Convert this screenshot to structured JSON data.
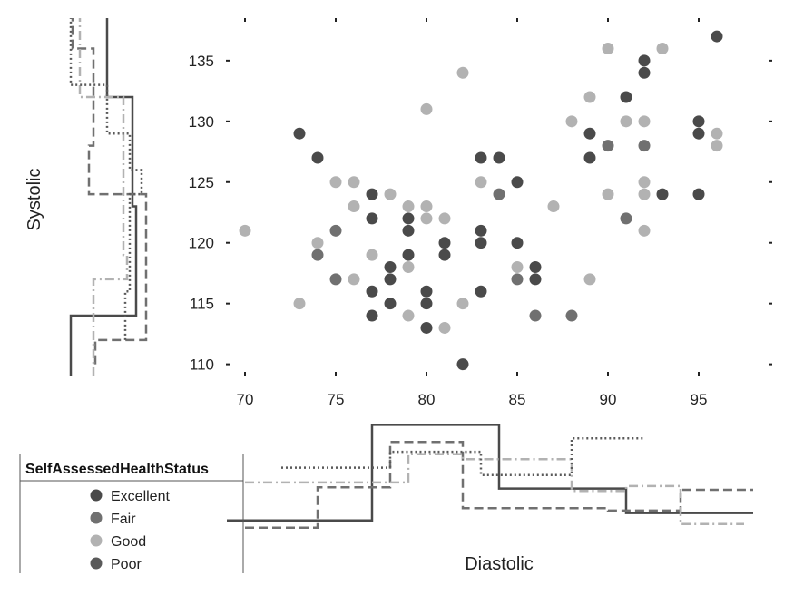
{
  "chart_data": {
    "type": "scatter",
    "title": "",
    "xlabel": "Diastolic",
    "ylabel": "Systolic",
    "xlim": [
      69,
      99
    ],
    "ylim": [
      109,
      138.5
    ],
    "x_ticks": [
      70,
      75,
      80,
      85,
      90,
      95
    ],
    "y_ticks": [
      110,
      115,
      120,
      125,
      130,
      135
    ],
    "grid": false,
    "legend": {
      "title": "SelfAssessedHealthStatus",
      "placement": "bottom-left"
    },
    "series": [
      {
        "name": "Excellent",
        "color": "#4a4a4a",
        "line_style": "solid",
        "points": [
          [
            73,
            129
          ],
          [
            74,
            127
          ],
          [
            77,
            124
          ],
          [
            77,
            122
          ],
          [
            77,
            116
          ],
          [
            77,
            114
          ],
          [
            78,
            118
          ],
          [
            78,
            117
          ],
          [
            78,
            115
          ],
          [
            79,
            122
          ],
          [
            79,
            121
          ],
          [
            79,
            119
          ],
          [
            80,
            116
          ],
          [
            80,
            115
          ],
          [
            80,
            113
          ],
          [
            81,
            120
          ],
          [
            81,
            119
          ],
          [
            82,
            110
          ],
          [
            83,
            127
          ],
          [
            83,
            121
          ],
          [
            83,
            120
          ],
          [
            83,
            116
          ],
          [
            84,
            127
          ],
          [
            85,
            125
          ],
          [
            85,
            120
          ],
          [
            86,
            118
          ],
          [
            86,
            117
          ],
          [
            89,
            129
          ],
          [
            89,
            127
          ],
          [
            91,
            132
          ],
          [
            92,
            135
          ],
          [
            92,
            134
          ],
          [
            93,
            124
          ],
          [
            95,
            130
          ],
          [
            95,
            129
          ],
          [
            95,
            124
          ],
          [
            96,
            137
          ]
        ]
      },
      {
        "name": "Fair",
        "color": "#707070",
        "line_style": "dash",
        "points": [
          [
            74,
            119
          ],
          [
            75,
            121
          ],
          [
            75,
            117
          ],
          [
            84,
            124
          ],
          [
            85,
            117
          ],
          [
            86,
            114
          ],
          [
            88,
            114
          ],
          [
            90,
            128
          ],
          [
            91,
            122
          ],
          [
            92,
            128
          ]
        ]
      },
      {
        "name": "Good",
        "color": "#b2b2b2",
        "line_style": "dashdot",
        "points": [
          [
            70,
            121
          ],
          [
            73,
            115
          ],
          [
            74,
            120
          ],
          [
            75,
            125
          ],
          [
            76,
            125
          ],
          [
            76,
            123
          ],
          [
            76,
            117
          ],
          [
            77,
            119
          ],
          [
            78,
            124
          ],
          [
            79,
            123
          ],
          [
            79,
            118
          ],
          [
            79,
            114
          ],
          [
            80,
            131
          ],
          [
            80,
            123
          ],
          [
            80,
            122
          ],
          [
            81,
            122
          ],
          [
            81,
            113
          ],
          [
            82,
            134
          ],
          [
            82,
            115
          ],
          [
            83,
            125
          ],
          [
            85,
            118
          ],
          [
            87,
            123
          ],
          [
            88,
            130
          ],
          [
            89,
            132
          ],
          [
            89,
            117
          ],
          [
            90,
            136
          ],
          [
            90,
            124
          ],
          [
            91,
            130
          ],
          [
            92,
            130
          ],
          [
            92,
            125
          ],
          [
            92,
            124
          ],
          [
            92,
            121
          ],
          [
            93,
            136
          ],
          [
            96,
            129
          ],
          [
            96,
            128
          ]
        ]
      },
      {
        "name": "Poor",
        "color": "#5a5a5a",
        "line_style": "dot",
        "points": []
      }
    ],
    "marginal_x": {
      "bins": [
        69,
        73,
        77,
        84,
        91,
        98
      ],
      "series": [
        {
          "name": "Excellent",
          "bins": [
            69,
            73,
            77,
            84,
            91,
            98
          ],
          "density": [
            0.18,
            0.18,
            0.96,
            0.44,
            0.24
          ]
        },
        {
          "name": "Fair",
          "bins": [
            70,
            74,
            78,
            82,
            86,
            90,
            94,
            98
          ],
          "density": [
            0.12,
            0.45,
            0.82,
            0.28,
            0.28,
            0.26,
            0.43
          ]
        },
        {
          "name": "Good",
          "bins": [
            70,
            73,
            76,
            79,
            82,
            85,
            88,
            91,
            94,
            97.5
          ],
          "density": [
            0.49,
            0.49,
            0.49,
            0.72,
            0.68,
            0.68,
            0.42,
            0.46,
            0.15
          ]
        },
        {
          "name": "Poor",
          "bins": [
            72,
            78,
            83,
            88,
            92
          ],
          "density": [
            0.61,
            0.74,
            0.55,
            0.85
          ]
        }
      ]
    },
    "marginal_y": {
      "series": [
        {
          "name": "Excellent",
          "bins": [
            109,
            114,
            123,
            132,
            138.5
          ],
          "density": [
            0.1,
            0.82,
            0.78,
            0.5
          ]
        },
        {
          "name": "Fair",
          "bins": [
            110,
            112,
            124,
            128,
            136,
            138.5
          ],
          "density": [
            0.37,
            0.93,
            0.3,
            0.35,
            0.12
          ]
        },
        {
          "name": "Good",
          "bins": [
            109,
            117,
            119,
            132,
            138.5
          ],
          "density": [
            0.35,
            0.72,
            0.68,
            0.2
          ]
        },
        {
          "name": "Poor",
          "bins": [
            112,
            116,
            124,
            126,
            129,
            133,
            138.5
          ],
          "density": [
            0.7,
            0.75,
            0.88,
            0.75,
            0.5,
            0.1
          ]
        }
      ]
    }
  }
}
